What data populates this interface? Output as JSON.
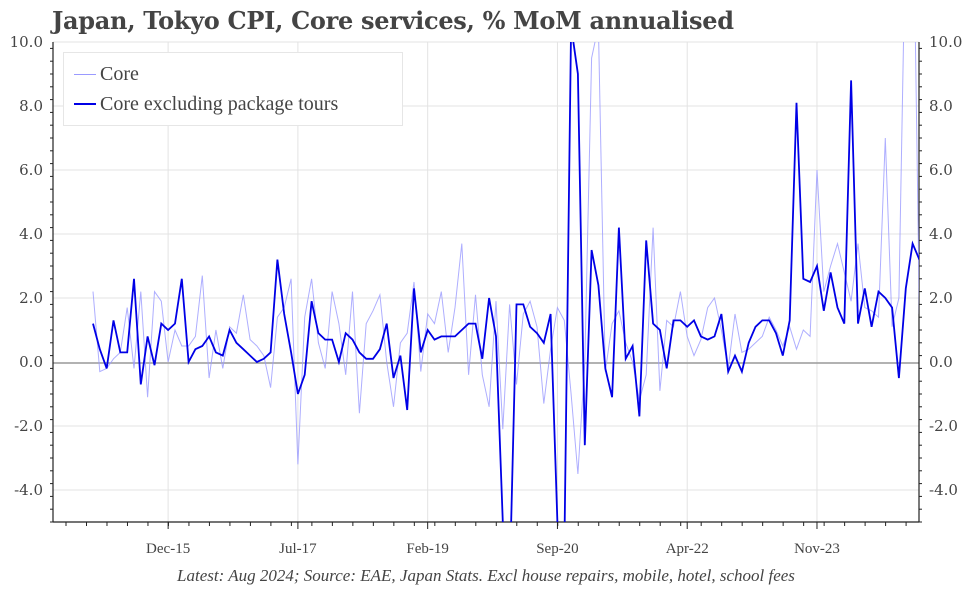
{
  "chart_data": {
    "type": "line",
    "title": "Japan, Tokyo CPI, Core services, % MoM annualised",
    "xlabel": "",
    "ylabel": "",
    "ylim": [
      -5.0,
      10.0
    ],
    "yticks": [
      "10.0",
      "8.0",
      "6.0",
      "4.0",
      "2.0",
      "0.0",
      "-2.0",
      "-4.0"
    ],
    "ytick_values": [
      10,
      8,
      6,
      4,
      2,
      0,
      -2,
      -4
    ],
    "xtick_labels": [
      "Dec-15",
      "Jul-17",
      "Feb-19",
      "Sep-20",
      "Apr-22",
      "Nov-23"
    ],
    "x_start": "Jan-15",
    "x_end": "Aug-24",
    "frequency": "monthly",
    "grid": true,
    "legend_position": "upper left",
    "source_note": "Latest: Aug 2024; Source: EAE, Japan Stats. Excl house repairs, mobile, hotel, school fees",
    "series": [
      {
        "name": "Core",
        "color": "#9a9aff",
        "values": [
          2.2,
          -0.3,
          -0.2,
          0.1,
          0.3,
          1.7,
          -0.2,
          2.2,
          -1.1,
          2.2,
          1.9,
          0.0,
          1.0,
          0.5,
          0.5,
          0.8,
          2.7,
          -0.5,
          1.0,
          -0.2,
          1.1,
          0.9,
          2.1,
          0.7,
          0.5,
          0.2,
          -0.8,
          1.4,
          1.7,
          2.6,
          -3.2,
          1.4,
          2.6,
          0.6,
          -0.2,
          2.2,
          1.2,
          -0.4,
          2.2,
          -1.6,
          1.2,
          1.6,
          2.1,
          0.0,
          -1.4,
          0.6,
          0.9,
          2.5,
          -0.3,
          1.5,
          1.2,
          2.2,
          0.3,
          1.7,
          3.7,
          -0.4,
          2.1,
          -0.4,
          -1.4,
          1.9,
          -2.1,
          1.8,
          -0.7,
          1.5,
          1.9,
          1.1,
          -1.3,
          0.4,
          1.7,
          1.3,
          -1.0,
          -3.5,
          0.0,
          9.5,
          10.5,
          -0.3,
          1.2,
          1.6,
          0.6,
          0.0,
          -1.2,
          -0.4,
          4.2,
          -0.9,
          1.3,
          1.1,
          2.2,
          0.8,
          0.2,
          0.7,
          1.7,
          2.0,
          1.0,
          -0.2,
          1.5,
          0.3,
          0.4,
          0.6,
          0.8,
          1.4,
          1.0,
          0.5,
          1.1,
          0.4,
          1.0,
          0.8,
          6.0,
          2.2,
          3.0,
          3.7,
          2.8,
          1.9,
          3.7,
          1.7,
          1.6,
          1.4,
          7.0,
          1.1,
          2.0,
          14.0,
          16.0,
          1.5,
          3.6,
          3.0,
          -1.6,
          2.2,
          3.5,
          5.0
        ]
      },
      {
        "name": "Core excluding package tours",
        "color": "#0000e6",
        "values": [
          1.2,
          0.4,
          -0.2,
          1.3,
          0.3,
          0.3,
          2.6,
          -0.7,
          0.8,
          -0.1,
          1.2,
          1.0,
          1.2,
          2.6,
          0.0,
          0.4,
          0.5,
          0.8,
          0.3,
          0.2,
          1.0,
          0.6,
          0.4,
          0.2,
          0.0,
          0.1,
          0.3,
          3.2,
          1.5,
          0.3,
          -1.0,
          -0.4,
          1.9,
          0.9,
          0.7,
          0.7,
          0.0,
          0.9,
          0.7,
          0.3,
          0.1,
          0.1,
          0.4,
          1.2,
          -0.5,
          0.2,
          -1.5,
          2.3,
          0.3,
          1.0,
          0.7,
          0.8,
          0.8,
          0.8,
          1.0,
          1.2,
          1.2,
          0.1,
          2.0,
          0.8,
          -5.0,
          -7.0,
          1.8,
          1.8,
          1.1,
          0.9,
          0.6,
          1.5,
          -5.0,
          -6.0,
          10.5,
          9.0,
          -2.6,
          3.5,
          2.4,
          -0.2,
          -1.1,
          4.2,
          0.1,
          0.5,
          -1.7,
          3.8,
          1.2,
          1.0,
          -0.2,
          1.3,
          1.3,
          1.1,
          1.3,
          0.8,
          0.7,
          0.8,
          1.5,
          -0.3,
          0.2,
          -0.3,
          0.6,
          1.1,
          1.3,
          1.3,
          0.9,
          0.2,
          1.3,
          8.1,
          2.6,
          2.5,
          3.0,
          1.6,
          2.8,
          1.7,
          1.2,
          8.8,
          1.2,
          2.3,
          1.1,
          2.2,
          2.0,
          1.7,
          -0.5,
          2.3,
          3.7,
          3.2
        ]
      }
    ]
  },
  "legend": {
    "items": [
      {
        "label": "Core",
        "color": "#9a9aff"
      },
      {
        "label": "Core excluding package tours",
        "color": "#0000e6"
      }
    ]
  },
  "footer": {
    "note": "Latest: Aug 2024; Source: EAE, Japan Stats. Excl house repairs, mobile, hotel, school fees"
  }
}
